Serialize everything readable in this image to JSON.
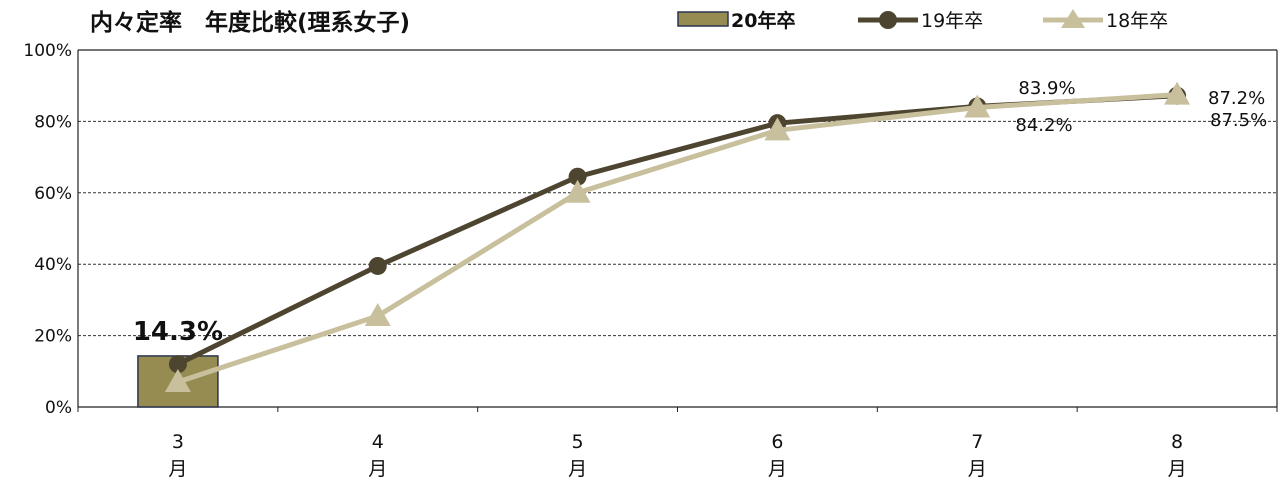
{
  "colors": {
    "bar_fill": "#968b51",
    "bar_stroke": "#2c3550",
    "series_19": "#4d4530",
    "series_18": "#c8bf9c",
    "grid": "#333333",
    "axis": "#222222"
  },
  "chart_data": {
    "type": "line",
    "title": "内々定率　年度比較(理系女子)",
    "ylim": [
      0,
      100
    ],
    "y_ticks": [
      "0%",
      "20%",
      "40%",
      "60%",
      "80%",
      "100%"
    ],
    "categories": [
      {
        "num": "3",
        "unit": "月"
      },
      {
        "num": "4",
        "unit": "月"
      },
      {
        "num": "5",
        "unit": "月"
      },
      {
        "num": "6",
        "unit": "月"
      },
      {
        "num": "7",
        "unit": "月"
      },
      {
        "num": "8",
        "unit": "月"
      }
    ],
    "grid": "horizontal dashed",
    "legend_position": "top",
    "series": [
      {
        "name": "20年卒",
        "kind": "bar",
        "values": [
          14.3,
          null,
          null,
          null,
          null,
          null
        ],
        "labels": [
          "14.3%",
          null,
          null,
          null,
          null,
          null
        ]
      },
      {
        "name": "19年卒",
        "kind": "line",
        "marker": "circle",
        "values": [
          12,
          39.5,
          64.5,
          79.5,
          84.2,
          87.2
        ],
        "labels": [
          null,
          null,
          null,
          null,
          "84.2%",
          "87.2%"
        ]
      },
      {
        "name": "18年卒",
        "kind": "line",
        "marker": "triangle",
        "values": [
          7,
          25.5,
          60,
          77.5,
          83.9,
          87.5
        ],
        "labels": [
          null,
          null,
          null,
          null,
          "83.9%",
          "87.5%"
        ]
      }
    ]
  }
}
